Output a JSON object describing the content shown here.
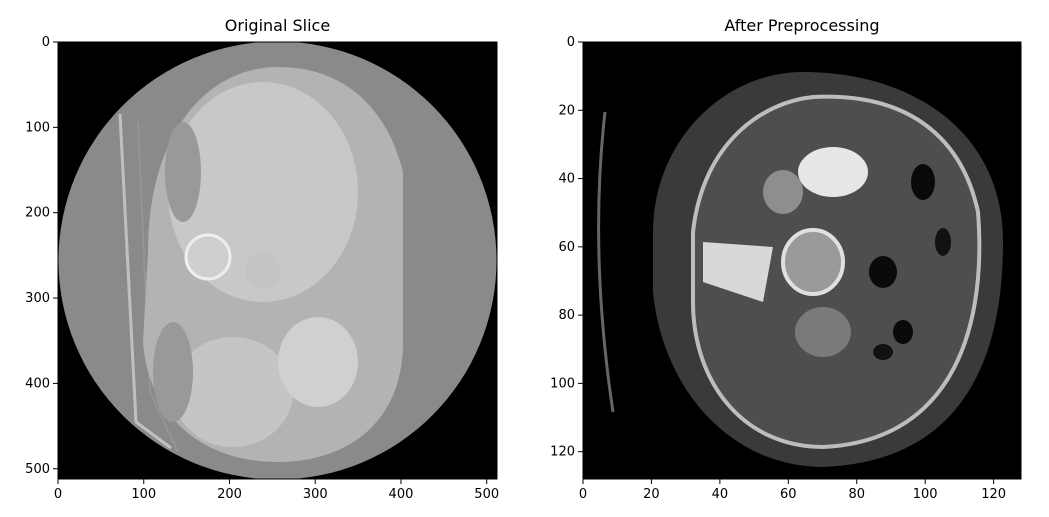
{
  "panels": [
    {
      "title": "Original Slice",
      "x_ticks": [
        "0",
        "100",
        "200",
        "300",
        "400",
        "500"
      ],
      "y_ticks": [
        "0",
        "100",
        "200",
        "300",
        "400",
        "500"
      ]
    },
    {
      "title": "After Preprocessing",
      "x_ticks": [
        "0",
        "20",
        "40",
        "60",
        "80",
        "100",
        "120"
      ],
      "y_ticks": [
        "0",
        "20",
        "40",
        "60",
        "80",
        "100",
        "120"
      ]
    }
  ],
  "colors": {
    "background": "#000000",
    "scan_ring": "#8a8a8a",
    "tissue": "#b9b9b9"
  }
}
